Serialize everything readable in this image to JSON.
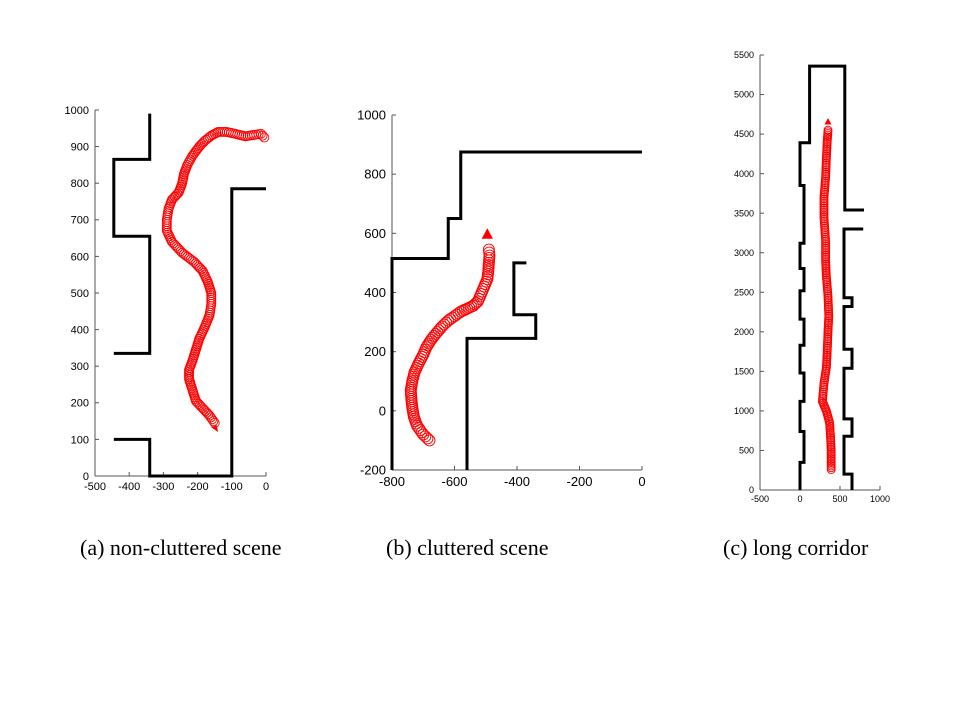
{
  "chart_data": [
    {
      "type": "scatter",
      "caption": "(a) non-cluttered scene",
      "xlim": [
        -500,
        0
      ],
      "ylim": [
        0,
        1000
      ],
      "x_ticks": [
        -500,
        -400,
        -300,
        -200,
        -100,
        0
      ],
      "y_ticks": [
        0,
        100,
        200,
        300,
        400,
        500,
        600,
        700,
        800,
        900,
        1000
      ],
      "walls": [
        [
          [
            -340,
            990
          ],
          [
            -340,
            865
          ],
          [
            -445,
            865
          ],
          [
            -445,
            655
          ],
          [
            -340,
            655
          ],
          [
            -340,
            335
          ],
          [
            -445,
            335
          ]
        ],
        [
          [
            -445,
            100
          ],
          [
            -340,
            100
          ],
          [
            -340,
            0
          ],
          [
            -100,
            0
          ],
          [
            -100,
            785
          ],
          [
            0,
            785
          ]
        ]
      ],
      "trajectory": [
        [
          -150,
          145
        ],
        [
          -165,
          165
        ],
        [
          -185,
          185
        ],
        [
          -205,
          205
        ],
        [
          -215,
          235
        ],
        [
          -225,
          265
        ],
        [
          -225,
          290
        ],
        [
          -215,
          315
        ],
        [
          -205,
          345
        ],
        [
          -195,
          375
        ],
        [
          -180,
          405
        ],
        [
          -165,
          440
        ],
        [
          -160,
          470
        ],
        [
          -160,
          500
        ],
        [
          -170,
          530
        ],
        [
          -185,
          560
        ],
        [
          -210,
          585
        ],
        [
          -245,
          610
        ],
        [
          -275,
          640
        ],
        [
          -290,
          670
        ],
        [
          -290,
          700
        ],
        [
          -285,
          730
        ],
        [
          -275,
          755
        ],
        [
          -255,
          775
        ],
        [
          -245,
          800
        ],
        [
          -240,
          825
        ],
        [
          -230,
          850
        ],
        [
          -215,
          875
        ],
        [
          -195,
          900
        ],
        [
          -180,
          915
        ],
        [
          -160,
          930
        ],
        [
          -140,
          940
        ],
        [
          -115,
          940
        ],
        [
          -90,
          935
        ],
        [
          -60,
          928
        ],
        [
          -35,
          932
        ],
        [
          -15,
          935
        ],
        [
          -5,
          925
        ]
      ],
      "arrow": [
        -140,
        120
      ],
      "colors": {
        "wall": "#000000",
        "trajectory": "#ff0000"
      }
    },
    {
      "type": "scatter",
      "caption": "(b) cluttered scene",
      "xlim": [
        -800,
        0
      ],
      "ylim": [
        -200,
        1000
      ],
      "x_ticks": [
        -800,
        -600,
        -400,
        -200,
        0
      ],
      "y_ticks": [
        -200,
        0,
        200,
        400,
        600,
        800,
        1000
      ],
      "walls": [
        [
          [
            -800,
            -200
          ],
          [
            -800,
            515
          ],
          [
            -620,
            515
          ],
          [
            -620,
            650
          ],
          [
            -580,
            650
          ],
          [
            -580,
            875
          ],
          [
            0,
            875
          ]
        ],
        [
          [
            -560,
            -200
          ],
          [
            -560,
            245
          ],
          [
            -340,
            245
          ],
          [
            -340,
            325
          ],
          [
            -410,
            325
          ],
          [
            -410,
            500
          ],
          [
            -370,
            500
          ]
        ]
      ],
      "trajectory": [
        [
          -680,
          -100
        ],
        [
          -700,
          -80
        ],
        [
          -720,
          -50
        ],
        [
          -730,
          -20
        ],
        [
          -735,
          10
        ],
        [
          -738,
          40
        ],
        [
          -740,
          70
        ],
        [
          -735,
          100
        ],
        [
          -728,
          130
        ],
        [
          -715,
          160
        ],
        [
          -700,
          190
        ],
        [
          -690,
          215
        ],
        [
          -675,
          240
        ],
        [
          -660,
          260
        ],
        [
          -640,
          285
        ],
        [
          -620,
          305
        ],
        [
          -600,
          320
        ],
        [
          -580,
          335
        ],
        [
          -560,
          345
        ],
        [
          -540,
          355
        ],
        [
          -525,
          370
        ],
        [
          -515,
          395
        ],
        [
          -505,
          420
        ],
        [
          -495,
          445
        ],
        [
          -492,
          470
        ],
        [
          -490,
          500
        ],
        [
          -488,
          525
        ],
        [
          -490,
          545
        ]
      ],
      "arrow": [
        -495,
        590
      ],
      "colors": {
        "wall": "#000000",
        "trajectory": "#ff0000"
      }
    },
    {
      "type": "scatter",
      "caption": "(c) long corridor",
      "xlim": [
        -500,
        1000
      ],
      "ylim": [
        0,
        5500
      ],
      "x_ticks": [
        -500,
        0,
        500,
        1000
      ],
      "y_ticks": [
        0,
        500,
        1000,
        1500,
        2000,
        2500,
        3000,
        3500,
        4000,
        4500,
        5000,
        5500
      ],
      "walls": [
        [
          [
            0,
            0
          ],
          [
            0,
            350
          ],
          [
            50,
            350
          ],
          [
            50,
            740
          ],
          [
            0,
            740
          ],
          [
            0,
            1120
          ],
          [
            50,
            1120
          ],
          [
            50,
            1480
          ],
          [
            0,
            1480
          ],
          [
            0,
            1830
          ],
          [
            50,
            1830
          ],
          [
            50,
            2160
          ],
          [
            0,
            2160
          ],
          [
            0,
            2520
          ],
          [
            50,
            2520
          ],
          [
            50,
            2800
          ],
          [
            0,
            2800
          ],
          [
            0,
            3120
          ],
          [
            50,
            3120
          ],
          [
            50,
            3850
          ],
          [
            0,
            3850
          ],
          [
            0,
            4390
          ],
          [
            120,
            4390
          ],
          [
            120,
            5360
          ],
          [
            560,
            5360
          ],
          [
            560,
            3540
          ],
          [
            800,
            3540
          ]
        ],
        [
          [
            650,
            0
          ],
          [
            650,
            200
          ],
          [
            550,
            200
          ],
          [
            550,
            680
          ],
          [
            650,
            680
          ],
          [
            650,
            900
          ],
          [
            550,
            900
          ],
          [
            550,
            1540
          ],
          [
            650,
            1540
          ],
          [
            650,
            1780
          ],
          [
            550,
            1780
          ],
          [
            550,
            2320
          ],
          [
            650,
            2320
          ],
          [
            650,
            2430
          ],
          [
            550,
            2430
          ],
          [
            550,
            3300
          ],
          [
            790,
            3300
          ]
        ]
      ],
      "trajectory": [
        [
          390,
          260
        ],
        [
          390,
          500
        ],
        [
          380,
          700
        ],
        [
          370,
          850
        ],
        [
          330,
          1000
        ],
        [
          280,
          1120
        ],
        [
          300,
          1350
        ],
        [
          330,
          1550
        ],
        [
          340,
          1750
        ],
        [
          350,
          2000
        ],
        [
          360,
          2200
        ],
        [
          350,
          2450
        ],
        [
          330,
          2700
        ],
        [
          320,
          2900
        ],
        [
          320,
          3150
        ],
        [
          300,
          3450
        ],
        [
          300,
          3700
        ],
        [
          320,
          3950
        ],
        [
          330,
          4200
        ],
        [
          340,
          4400
        ],
        [
          350,
          4550
        ]
      ],
      "arrow": [
        350,
        4640
      ],
      "colors": {
        "wall": "#000000",
        "trajectory": "#ff0000"
      }
    }
  ]
}
